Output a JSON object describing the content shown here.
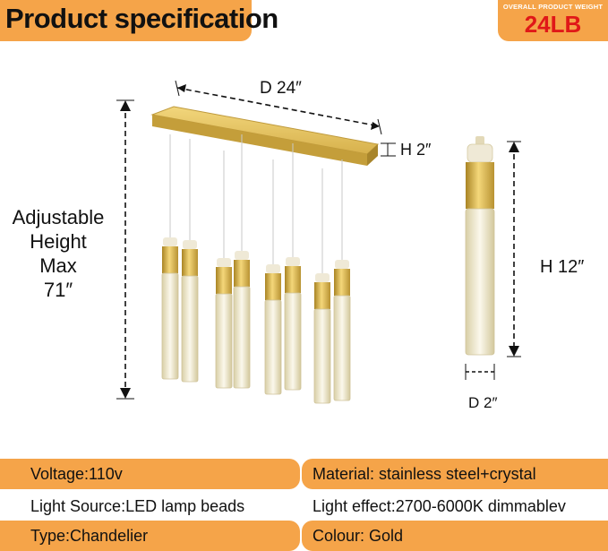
{
  "header": {
    "title": "Product specification",
    "weight_label": "OVERALL PRODUCT WEIGHT",
    "weight_value": "24LB"
  },
  "dimensions": {
    "depth": "D 24″",
    "canopy_height": "H 2″",
    "pendant_height": "H 12″",
    "pendant_diameter": "D 2″",
    "adjustable_lines": [
      "Adjustable",
      "Height",
      "Max",
      "71″"
    ]
  },
  "specs": [
    {
      "left": "Voltage:110v",
      "right": "Material: stainless steel+crystal",
      "highlight": true
    },
    {
      "left": "Light Source:LED lamp beads",
      "right": "Light effect:2700-6000K dimmablev",
      "highlight": false
    },
    {
      "left": "Type:Chandelier",
      "right": "Colour: Gold",
      "highlight": true
    }
  ],
  "colors": {
    "accent": "#f5a449",
    "weight": "#e01818",
    "gold": "#d9b44a"
  }
}
